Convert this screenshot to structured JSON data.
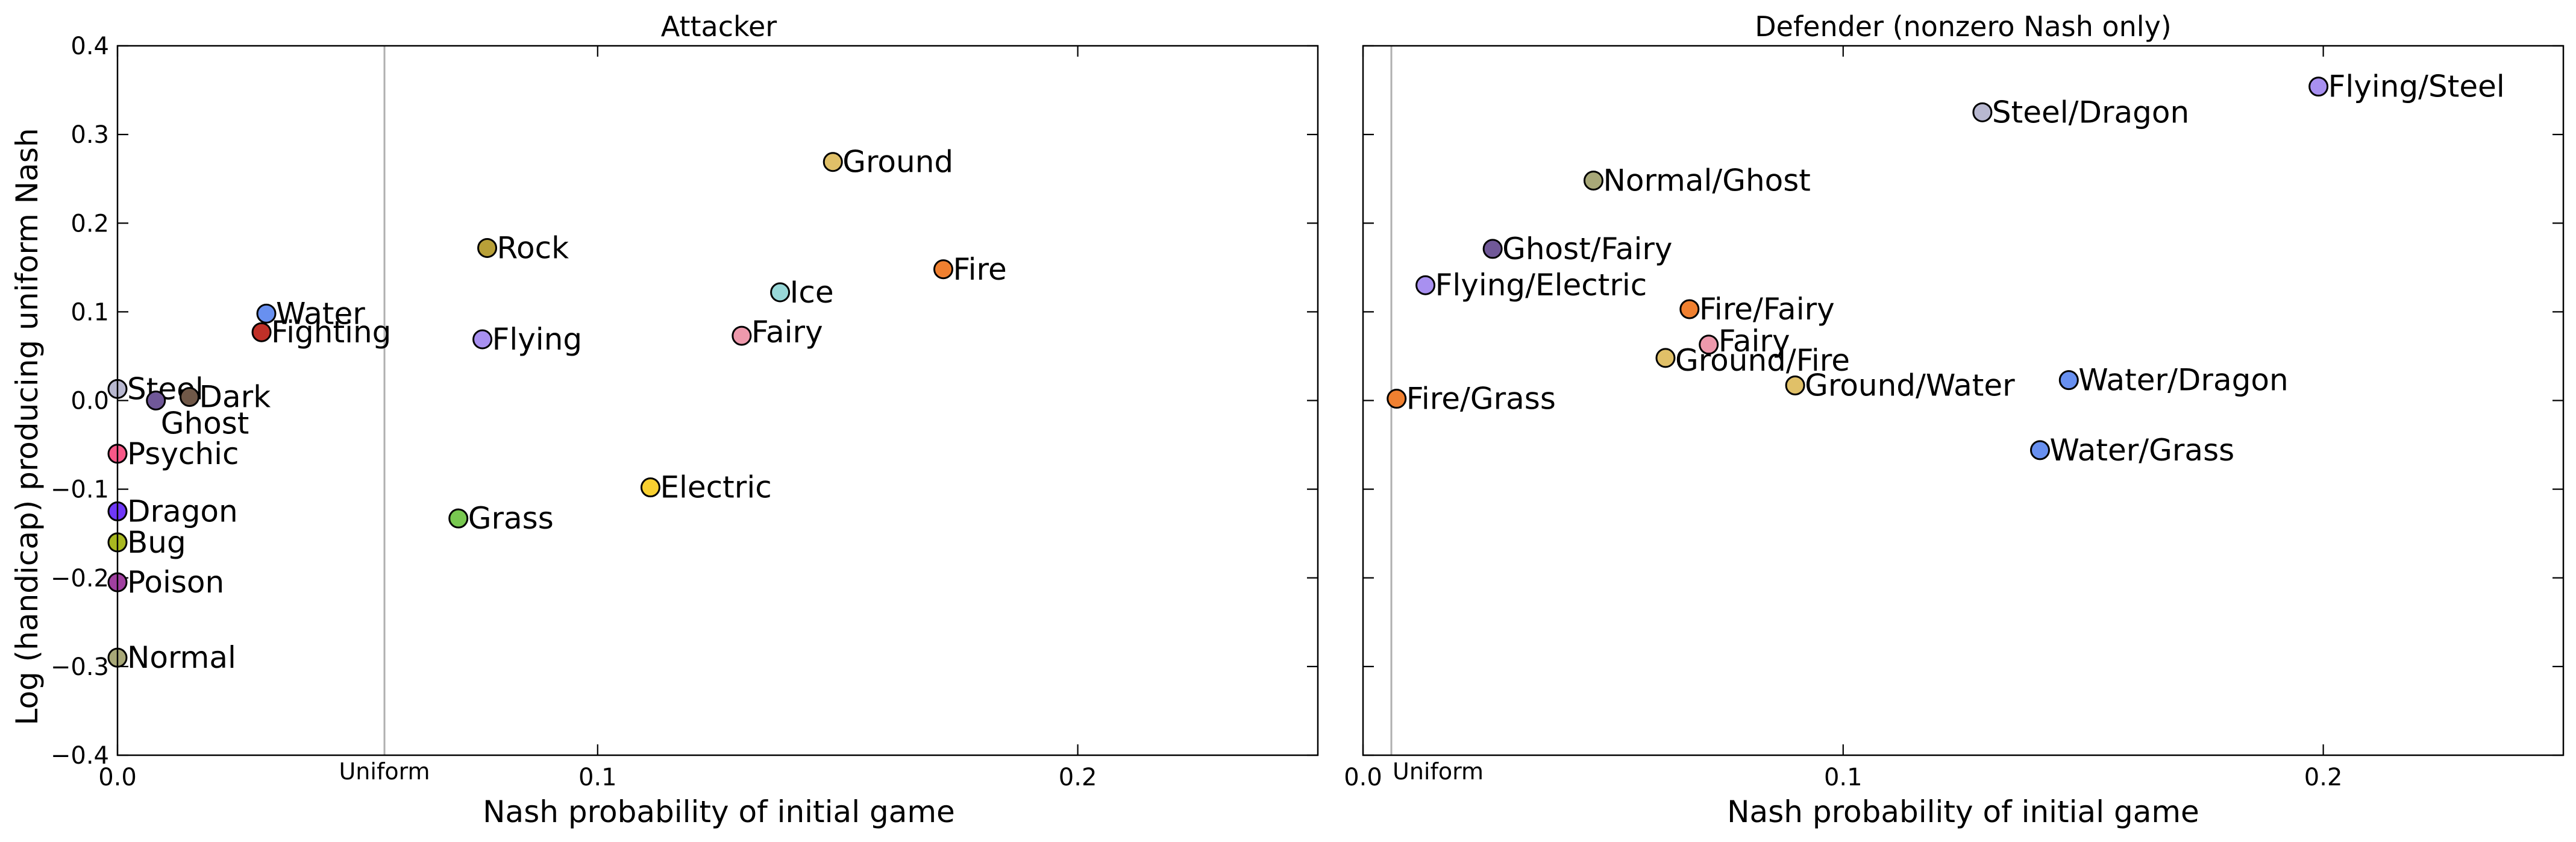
{
  "chart_data": [
    {
      "type": "scatter",
      "title": "Attacker",
      "xlabel": "Nash probability of initial game",
      "ylabel": "Log (handicap) producing uniform Nash",
      "xlim": [
        0,
        0.25
      ],
      "ylim": [
        -0.4,
        0.4
      ],
      "xticks": [
        0.0,
        0.1,
        0.2
      ],
      "xtick_labels": [
        "0.0",
        "0.1",
        "0.2"
      ],
      "yticks": [
        -0.4,
        -0.3,
        -0.2,
        -0.1,
        0.0,
        0.1,
        0.2,
        0.3,
        0.4
      ],
      "ytick_labels": [
        "−0.4",
        "−0.3",
        "−0.2",
        "−0.1",
        "0.0",
        "0.1",
        "0.2",
        "0.3",
        "0.4"
      ],
      "reference_line": {
        "x": 0.0556,
        "label": "Uniform"
      },
      "grid": false,
      "points": [
        {
          "label": "Ground",
          "x": 0.149,
          "y": 0.269,
          "color": "#e0c068"
        },
        {
          "label": "Rock",
          "x": 0.077,
          "y": 0.172,
          "color": "#b8a038"
        },
        {
          "label": "Fire",
          "x": 0.172,
          "y": 0.148,
          "color": "#f08030"
        },
        {
          "label": "Ice",
          "x": 0.138,
          "y": 0.122,
          "color": "#98d8d8"
        },
        {
          "label": "Water",
          "x": 0.031,
          "y": 0.098,
          "color": "#6890f0"
        },
        {
          "label": "Fighting",
          "x": 0.03,
          "y": 0.077,
          "color": "#c03028"
        },
        {
          "label": "Fairy",
          "x": 0.13,
          "y": 0.073,
          "color": "#ee99ac"
        },
        {
          "label": "Flying",
          "x": 0.076,
          "y": 0.069,
          "color": "#a890f0"
        },
        {
          "label": "Steel",
          "x": 0.0,
          "y": 0.013,
          "color": "#b8b8d0"
        },
        {
          "label": "Dark",
          "x": 0.015,
          "y": 0.004,
          "color": "#705848"
        },
        {
          "label": "Ghost",
          "x": 0.008,
          "y": 0.0,
          "color": "#705898"
        },
        {
          "label": "Psychic",
          "x": 0.0,
          "y": -0.06,
          "color": "#f85888"
        },
        {
          "label": "Electric",
          "x": 0.111,
          "y": -0.098,
          "color": "#f8d030"
        },
        {
          "label": "Dragon",
          "x": 0.0,
          "y": -0.125,
          "color": "#7038f8"
        },
        {
          "label": "Grass",
          "x": 0.071,
          "y": -0.133,
          "color": "#78c850"
        },
        {
          "label": "Bug",
          "x": 0.0,
          "y": -0.16,
          "color": "#a8b820"
        },
        {
          "label": "Poison",
          "x": 0.0,
          "y": -0.205,
          "color": "#a040a0"
        },
        {
          "label": "Normal",
          "x": 0.0,
          "y": -0.29,
          "color": "#a8a878"
        }
      ]
    },
    {
      "type": "scatter",
      "title": "Defender (nonzero Nash only)",
      "xlabel": "Nash probability of initial game",
      "xlim": [
        0,
        0.25
      ],
      "ylim": [
        -0.4,
        0.4
      ],
      "xticks": [
        0.0,
        0.1,
        0.2
      ],
      "xtick_labels": [
        "0.0",
        "0.1",
        "0.2"
      ],
      "yticks": [
        -0.4,
        -0.3,
        -0.2,
        -0.1,
        0.0,
        0.1,
        0.2,
        0.3,
        0.4
      ],
      "reference_line": {
        "x": 0.0059,
        "label": "Uniform"
      },
      "grid": false,
      "points": [
        {
          "label": "Flying/Steel",
          "x": 0.199,
          "y": 0.354,
          "color": "#a890f0"
        },
        {
          "label": "Steel/Dragon",
          "x": 0.129,
          "y": 0.325,
          "color": "#b8b8d0"
        },
        {
          "label": "Normal/Ghost",
          "x": 0.048,
          "y": 0.248,
          "color": "#a8a878"
        },
        {
          "label": "Ghost/Fairy",
          "x": 0.027,
          "y": 0.171,
          "color": "#705898"
        },
        {
          "label": "Flying/Electric",
          "x": 0.013,
          "y": 0.13,
          "color": "#a890f0"
        },
        {
          "label": "Fire/Fairy",
          "x": 0.068,
          "y": 0.103,
          "color": "#f08030"
        },
        {
          "label": "Fairy",
          "x": 0.072,
          "y": 0.063,
          "color": "#ee99ac"
        },
        {
          "label": "Ground/Fire",
          "x": 0.063,
          "y": 0.048,
          "color": "#e0c068"
        },
        {
          "label": "Ground/Water",
          "x": 0.09,
          "y": 0.017,
          "color": "#e0c068"
        },
        {
          "label": "Water/Dragon",
          "x": 0.147,
          "y": 0.023,
          "color": "#6890f0"
        },
        {
          "label": "Fire/Grass",
          "x": 0.007,
          "y": 0.002,
          "color": "#f08030"
        },
        {
          "label": "Water/Grass",
          "x": 0.141,
          "y": -0.056,
          "color": "#6890f0"
        }
      ]
    }
  ]
}
